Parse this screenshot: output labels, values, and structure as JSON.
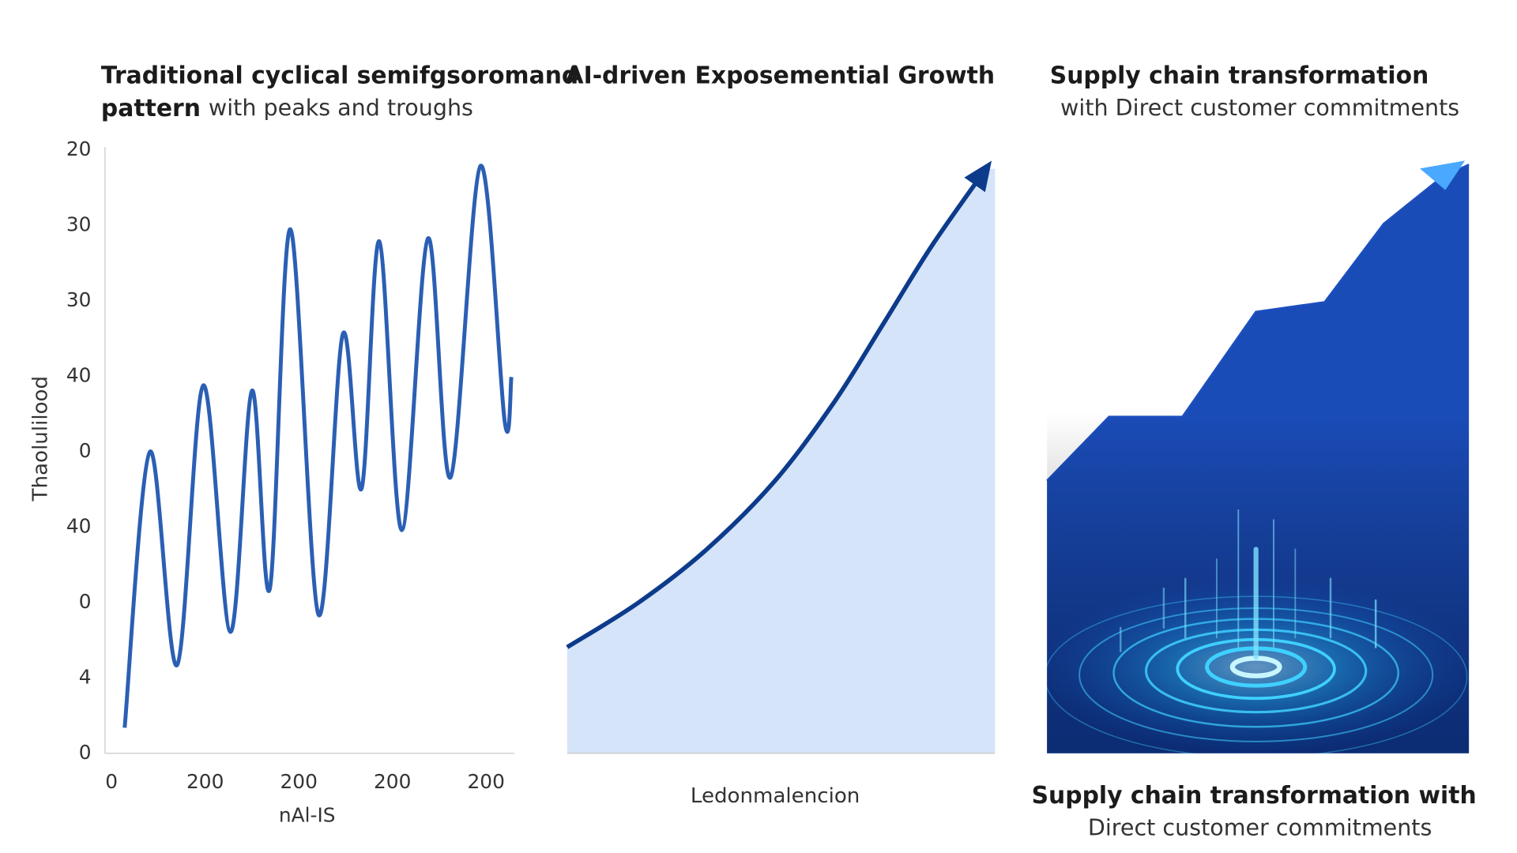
{
  "chart_data": [
    {
      "type": "line",
      "title": [
        "Traditional cyclical semifgsoromand",
        "pattern"
      ],
      "subtitle": "with peaks and troughs",
      "ylabel": "Thaolulilood",
      "xlabel": "nAl-IS",
      "color": "#2b5fb4",
      "grid": false,
      "xlim": [
        -0.07,
        4.3
      ],
      "ylim": [
        0,
        8
      ],
      "xticks": [
        0,
        {
          "value": 1,
          "label": "200"
        },
        {
          "value": 2,
          "label": "200"
        },
        {
          "value": 3,
          "label": "200"
        },
        {
          "value": 4,
          "label": "200"
        }
      ],
      "yticks": [
        {
          "value": 8,
          "label": "20"
        },
        {
          "value": 7,
          "label": "30"
        },
        {
          "value": 6,
          "label": "30"
        },
        {
          "value": 5,
          "label": "40"
        },
        {
          "value": 4,
          "label": "0"
        },
        {
          "value": 3,
          "label": "40"
        },
        {
          "value": 2,
          "label": "0"
        },
        {
          "value": 1,
          "label": "4"
        },
        {
          "value": 0,
          "label": "0"
        }
      ],
      "x": [
        0.14,
        0.41,
        0.7,
        0.98,
        1.27,
        1.5,
        1.69,
        1.91,
        2.21,
        2.47,
        2.67,
        2.86,
        3.1,
        3.38,
        3.62,
        3.94,
        4.2,
        4.27
      ],
      "values": [
        0.34,
        4.0,
        1.17,
        4.88,
        1.61,
        4.81,
        2.18,
        6.95,
        1.84,
        5.56,
        3.51,
        6.79,
        2.96,
        6.83,
        3.66,
        7.79,
        4.39,
        4.99
      ]
    },
    {
      "type": "area",
      "title": "AI-driven Exposemential Growth",
      "xlabel": "Ledonmalencion",
      "color": "#0d3b8c",
      "fill": "#d5e4f8",
      "xlim": [
        0,
        100
      ],
      "ylim": [
        0,
        100
      ],
      "x": [
        0,
        16.5,
        32.6,
        48.6,
        62.4,
        73.9,
        85.3,
        97.9
      ],
      "values": [
        17.6,
        24.9,
        33.8,
        45.2,
        58.2,
        71.2,
        84.2,
        96.9
      ]
    },
    {
      "type": "area",
      "title": "Supply chain transformation",
      "subtitle": "with Direct customer commitments",
      "caption": "Supply chain transformation with",
      "caption_sub": "Direct customer commitments",
      "color": "#1c4fbf",
      "fill": "#1a4cb8",
      "xlim": [
        0,
        100
      ],
      "ylim": [
        0,
        100
      ],
      "x": [
        0,
        14.7,
        32.1,
        49.5,
        65.8,
        79.8,
        93.7,
        100
      ],
      "values": [
        45.2,
        55.8,
        55.8,
        73.2,
        74.8,
        87.8,
        95.6,
        97.6
      ]
    }
  ]
}
